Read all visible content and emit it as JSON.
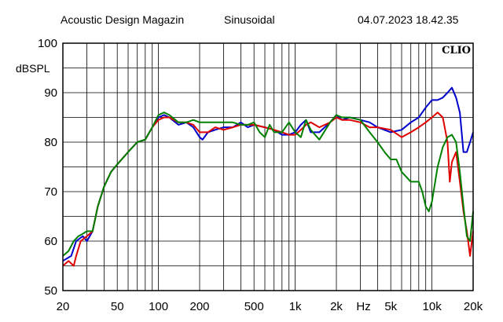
{
  "header": {
    "publisher": "Acoustic Design Magazin",
    "mode": "Sinusoidal",
    "timestamp": "04.07.2023 18.42.35"
  },
  "chart_data": {
    "type": "line",
    "brand": "CLIO",
    "ylabel": "dBSPL",
    "xlabel": "Hz",
    "x_scale": "log",
    "xlim": [
      20,
      20000
    ],
    "ylim": [
      50,
      100
    ],
    "grid": true,
    "x_tick_labels": [
      {
        "value": 20,
        "label": "20"
      },
      {
        "value": 50,
        "label": "50"
      },
      {
        "value": 100,
        "label": "100"
      },
      {
        "value": 200,
        "label": "200"
      },
      {
        "value": 500,
        "label": "500"
      },
      {
        "value": 1000,
        "label": "1k"
      },
      {
        "value": 2000,
        "label": "2k"
      },
      {
        "value": 5000,
        "label": "5k"
      },
      {
        "value": 10000,
        "label": "10k"
      },
      {
        "value": 20000,
        "label": "20k"
      }
    ],
    "y_ticks": [
      50,
      60,
      70,
      80,
      90,
      100
    ],
    "colors": {
      "blue": "#0000cc",
      "red": "#e00000",
      "green": "#008000"
    },
    "series": [
      {
        "color": "#0000cc",
        "points": [
          [
            20,
            56
          ],
          [
            23,
            57
          ],
          [
            25,
            60
          ],
          [
            28,
            61
          ],
          [
            30,
            60
          ],
          [
            33,
            62
          ],
          [
            36,
            67
          ],
          [
            40,
            71
          ],
          [
            45,
            74
          ],
          [
            50,
            75.5
          ],
          [
            60,
            78
          ],
          [
            70,
            80
          ],
          [
            80,
            80.5
          ],
          [
            90,
            83
          ],
          [
            100,
            85
          ],
          [
            110,
            85.5
          ],
          [
            120,
            85
          ],
          [
            140,
            83.5
          ],
          [
            160,
            84
          ],
          [
            180,
            83
          ],
          [
            200,
            81
          ],
          [
            210,
            80.5
          ],
          [
            230,
            82
          ],
          [
            260,
            82.5
          ],
          [
            300,
            83
          ],
          [
            350,
            83
          ],
          [
            400,
            84
          ],
          [
            450,
            83
          ],
          [
            500,
            83.5
          ],
          [
            600,
            83
          ],
          [
            700,
            82.5
          ],
          [
            800,
            81.5
          ],
          [
            900,
            81.5
          ],
          [
            1000,
            82
          ],
          [
            1100,
            83.5
          ],
          [
            1200,
            84.5
          ],
          [
            1300,
            82
          ],
          [
            1500,
            82
          ],
          [
            1800,
            84
          ],
          [
            2000,
            85.5
          ],
          [
            2200,
            84.5
          ],
          [
            2500,
            85
          ],
          [
            3000,
            84.5
          ],
          [
            3500,
            84
          ],
          [
            4000,
            83
          ],
          [
            5000,
            82
          ],
          [
            6000,
            82.5
          ],
          [
            7000,
            84
          ],
          [
            8000,
            85
          ],
          [
            9000,
            87
          ],
          [
            10000,
            88.5
          ],
          [
            11000,
            88.5
          ],
          [
            12000,
            89
          ],
          [
            13000,
            90
          ],
          [
            14000,
            91
          ],
          [
            15000,
            89
          ],
          [
            16000,
            86
          ],
          [
            17000,
            78
          ],
          [
            18000,
            78
          ],
          [
            19000,
            80
          ],
          [
            20000,
            82
          ]
        ]
      },
      {
        "color": "#e00000",
        "points": [
          [
            20,
            55
          ],
          [
            22,
            56
          ],
          [
            24,
            55
          ],
          [
            25,
            57
          ],
          [
            27,
            60
          ],
          [
            30,
            61
          ],
          [
            33,
            62
          ],
          [
            36,
            67
          ],
          [
            40,
            71
          ],
          [
            45,
            74
          ],
          [
            50,
            75.5
          ],
          [
            60,
            78
          ],
          [
            70,
            80
          ],
          [
            80,
            80.5
          ],
          [
            90,
            83
          ],
          [
            100,
            84.5
          ],
          [
            110,
            85
          ],
          [
            120,
            85
          ],
          [
            140,
            84
          ],
          [
            160,
            84
          ],
          [
            180,
            83.5
          ],
          [
            200,
            82
          ],
          [
            230,
            82
          ],
          [
            260,
            83
          ],
          [
            300,
            82.5
          ],
          [
            350,
            83
          ],
          [
            400,
            83.5
          ],
          [
            450,
            83.5
          ],
          [
            500,
            83.5
          ],
          [
            600,
            83
          ],
          [
            700,
            82.5
          ],
          [
            800,
            82
          ],
          [
            900,
            81.5
          ],
          [
            1000,
            81.5
          ],
          [
            1100,
            82.5
          ],
          [
            1200,
            83.5
          ],
          [
            1300,
            84
          ],
          [
            1500,
            83
          ],
          [
            1800,
            84
          ],
          [
            2000,
            85
          ],
          [
            2200,
            84.5
          ],
          [
            2500,
            84.5
          ],
          [
            3000,
            84
          ],
          [
            3500,
            83
          ],
          [
            4000,
            83
          ],
          [
            5000,
            82.5
          ],
          [
            6000,
            81
          ],
          [
            7000,
            82
          ],
          [
            8000,
            83
          ],
          [
            9000,
            84
          ],
          [
            10000,
            85
          ],
          [
            11000,
            86
          ],
          [
            12000,
            85
          ],
          [
            13000,
            80
          ],
          [
            13500,
            72
          ],
          [
            14000,
            76
          ],
          [
            15000,
            78
          ],
          [
            16000,
            72
          ],
          [
            17000,
            66
          ],
          [
            18000,
            62
          ],
          [
            19000,
            57
          ],
          [
            20000,
            62
          ]
        ]
      },
      {
        "color": "#008000",
        "points": [
          [
            20,
            57
          ],
          [
            22,
            58
          ],
          [
            24,
            60
          ],
          [
            26,
            61
          ],
          [
            28,
            61.5
          ],
          [
            30,
            62
          ],
          [
            33,
            62
          ],
          [
            36,
            67
          ],
          [
            40,
            71
          ],
          [
            45,
            74
          ],
          [
            50,
            75.5
          ],
          [
            60,
            78
          ],
          [
            70,
            80
          ],
          [
            80,
            80.5
          ],
          [
            90,
            83
          ],
          [
            100,
            85.5
          ],
          [
            110,
            86
          ],
          [
            120,
            85.5
          ],
          [
            140,
            84
          ],
          [
            160,
            84
          ],
          [
            180,
            84.5
          ],
          [
            200,
            84
          ],
          [
            230,
            84
          ],
          [
            260,
            84
          ],
          [
            300,
            84
          ],
          [
            350,
            84
          ],
          [
            400,
            83.5
          ],
          [
            450,
            83.5
          ],
          [
            500,
            84
          ],
          [
            550,
            82
          ],
          [
            600,
            81
          ],
          [
            650,
            83.5
          ],
          [
            700,
            82
          ],
          [
            800,
            82
          ],
          [
            900,
            84
          ],
          [
            1000,
            82
          ],
          [
            1100,
            81
          ],
          [
            1200,
            84.5
          ],
          [
            1300,
            82.5
          ],
          [
            1500,
            80.5
          ],
          [
            1800,
            84
          ],
          [
            2000,
            85.5
          ],
          [
            2200,
            85
          ],
          [
            2500,
            85
          ],
          [
            3000,
            84.5
          ],
          [
            3500,
            82
          ],
          [
            4000,
            80
          ],
          [
            4500,
            78
          ],
          [
            5000,
            76.5
          ],
          [
            5500,
            76.5
          ],
          [
            6000,
            74
          ],
          [
            7000,
            72
          ],
          [
            8000,
            72
          ],
          [
            8500,
            70
          ],
          [
            9000,
            67
          ],
          [
            9500,
            66
          ],
          [
            10000,
            68
          ],
          [
            11000,
            75
          ],
          [
            12000,
            79
          ],
          [
            13000,
            81
          ],
          [
            14000,
            81.5
          ],
          [
            15000,
            80
          ],
          [
            16000,
            74
          ],
          [
            17000,
            67
          ],
          [
            18000,
            61
          ],
          [
            19000,
            60
          ],
          [
            20000,
            66
          ]
        ]
      }
    ]
  }
}
